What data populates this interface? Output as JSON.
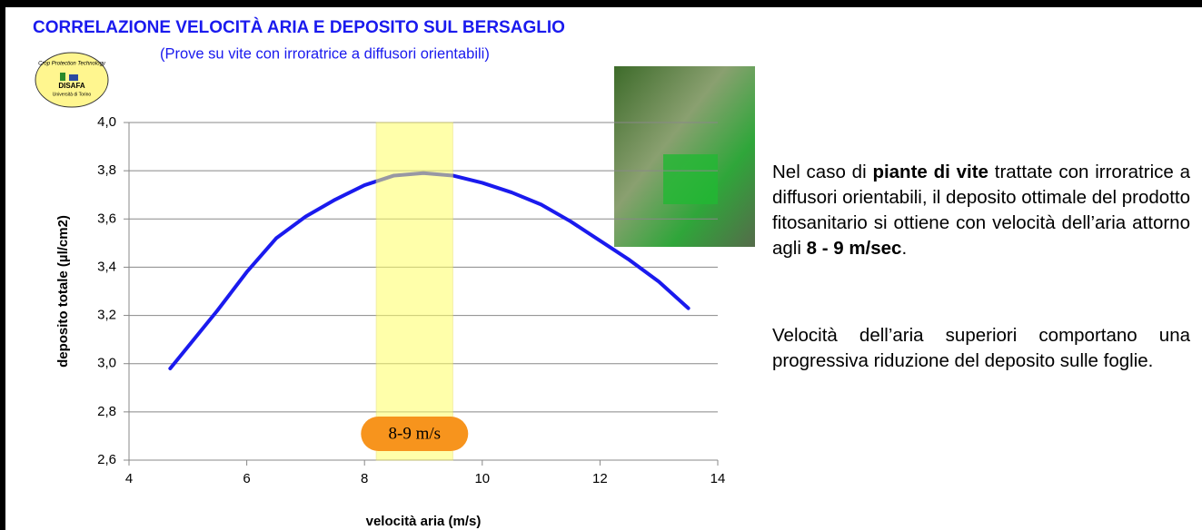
{
  "chart_data": {
    "type": "line",
    "title": "CORRELAZIONE VELOCITÀ ARIA E DEPOSITO SUL BERSAGLIO",
    "subtitle": "(Prove su vite con irroratrice a diffusori orientabili)",
    "xlabel": "velocità aria (m/s)",
    "ylabel": "deposito totale (µl/cm2)",
    "x": [
      4.7,
      5.5,
      6,
      6.5,
      7,
      7.5,
      8,
      8.5,
      9,
      9.5,
      10,
      10.5,
      11,
      11.5,
      12,
      12.5,
      13,
      13.5
    ],
    "series": [
      {
        "name": "deposito totale",
        "color": "#1a1aee",
        "values": [
          2.98,
          3.22,
          3.38,
          3.52,
          3.61,
          3.68,
          3.74,
          3.78,
          3.79,
          3.78,
          3.75,
          3.71,
          3.66,
          3.59,
          3.51,
          3.43,
          3.34,
          3.23
        ]
      }
    ],
    "xlim": [
      4,
      14
    ],
    "xticks": [
      4,
      6,
      8,
      10,
      12,
      14
    ],
    "ylim": [
      2.6,
      4.0
    ],
    "yticks": [
      {
        "value": 2.6,
        "label": "2,6"
      },
      {
        "value": 2.8,
        "label": "2,8"
      },
      {
        "value": 3.0,
        "label": "3,0"
      },
      {
        "value": 3.2,
        "label": "3,2"
      },
      {
        "value": 3.4,
        "label": "3,4"
      },
      {
        "value": 3.6,
        "label": "3,6"
      },
      {
        "value": 3.8,
        "label": "3,8"
      },
      {
        "value": 4.0,
        "label": "4,0"
      }
    ],
    "grid": true,
    "highlight": {
      "range": [
        8.2,
        9.5
      ],
      "color": "#ffff66",
      "label": "8-9 m/s",
      "label_color": "#f7941d"
    }
  },
  "logo": {
    "top": "Crop Protection Technology",
    "name": "DISAFA",
    "bottom": "Università di Torino"
  },
  "text": {
    "paragraph1": [
      "Nel caso di ",
      "piante di vite",
      " trattate con irroratrice a diffusori orientabili, il deposito ottimale del prodotto fitosanitario si ottiene con velocità dell’aria attorno agli ",
      "8 - 9 m/sec",
      "."
    ],
    "paragraph2": [
      "Velocità dell’aria superiori comportano una progressiva riduzione del deposito sulle foglie."
    ]
  }
}
